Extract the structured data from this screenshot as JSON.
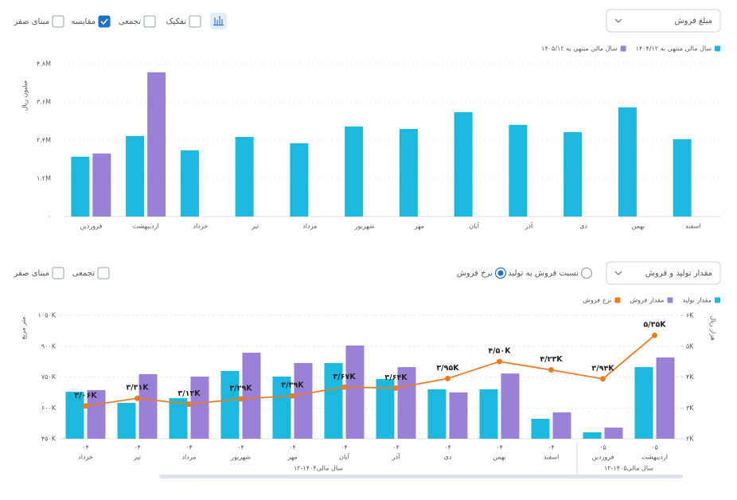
{
  "top_controls": {
    "dropdown": "مبلغ فروش",
    "checkboxes": [
      {
        "label": "مبنای صفر",
        "checked": false
      },
      {
        "label": "مقایسه",
        "checked": true
      },
      {
        "label": "تجمعی",
        "checked": false
      },
      {
        "label": "تفکیک",
        "checked": false
      }
    ]
  },
  "bottom_controls": {
    "dropdown": "مقدار تولید و فروش",
    "checkboxes": [
      {
        "label": "مبنای صفر",
        "checked": false
      },
      {
        "label": "تجمعی",
        "checked": false
      }
    ],
    "radios": [
      {
        "label": "نرخ فروش",
        "checked": true
      },
      {
        "label": "نسبت فروش به تولید",
        "checked": false
      }
    ]
  },
  "chart_data": [
    {
      "type": "bar",
      "y_label": "میلیون ریال",
      "categories": [
        "فروردین",
        "اردیبهشت",
        "خرداد",
        "تیر",
        "مرداد",
        "شهریور",
        "مهر",
        "آبان",
        "آذر",
        "دی",
        "بهمن",
        "اسفند"
      ],
      "series": [
        {
          "name": "سال مالی منتهی به ۱۴۰۴/۱۲",
          "color": "#1cb8de",
          "values": [
            1880000,
            2530000,
            2080000,
            2500000,
            2300000,
            2830000,
            2750000,
            3280000,
            2880000,
            2650000,
            3430000,
            2430000
          ]
        },
        {
          "name": "سال مالی منتهی به ۱۴۰۵/۱۲",
          "color": "#9b80d8",
          "values": [
            1980000,
            4530000,
            null,
            null,
            null,
            null,
            null,
            null,
            null,
            null,
            null,
            null
          ]
        }
      ],
      "ylim": [
        0,
        4800000
      ],
      "yticks": [
        {
          "value": 0,
          "label": "۰"
        },
        {
          "value": 1200000,
          "label": "۱.۲M"
        },
        {
          "value": 2400000,
          "label": "۲.۴M"
        },
        {
          "value": 3600000,
          "label": "۳.۶M"
        },
        {
          "value": 4800000,
          "label": "۴.۸M"
        }
      ],
      "grid": true
    },
    {
      "type": "combo",
      "y_label": "متر مربع",
      "y2_label": "هزار ریال",
      "categories": [
        "خرداد",
        "تیر",
        "مرداد",
        "شهریور",
        "مهر",
        "آبان",
        "آذر",
        "دی",
        "بهمن",
        "اسفند",
        "فروردین",
        "اردیبهشت"
      ],
      "category_years": [
        "۰۴",
        "۰۴",
        "۰۴",
        "۰۴",
        "۰۴",
        "۰۴",
        "۰۴",
        "۰۴",
        "۰۴",
        "۰۴",
        "۰۵",
        "۰۵"
      ],
      "groups": [
        "سال مالی۱۴۰۴-۱۲",
        "سال مالی۱۴۰۵-۱۲"
      ],
      "series": [
        {
          "name": "مقدار تولید",
          "type": "bar",
          "color": "#1cb8de",
          "values": [
            678000,
            624000,
            647000,
            779000,
            752000,
            818000,
            740000,
            690000,
            690000,
            547000,
            481000,
            798000
          ]
        },
        {
          "name": "مقدار فروش",
          "type": "bar",
          "color": "#9b80d8",
          "values": [
            686000,
            764000,
            752000,
            868000,
            818000,
            903000,
            798000,
            675000,
            767000,
            578000,
            504000,
            845000
          ]
        },
        {
          "name": "نرخ فروش",
          "type": "line",
          "axis": "y2",
          "color": "#ec7c23",
          "values": [
            3060,
            3310,
            3120,
            3290,
            3390,
            3670,
            3640,
            3950,
            4500,
            4230,
            3940,
            5350
          ],
          "value_labels": [
            "۳/۰۶K",
            "۳/۳۱K",
            "۳/۱۲K",
            "۳/۲۹K",
            "۳/۳۹K",
            "۳/۶۷K",
            "۳/۶۴K",
            "۳/۹۵K",
            "۴/۵۰K",
            "۴/۲۳K",
            "۳/۹۴K",
            "۵/۳۵K"
          ]
        }
      ],
      "ylim": [
        450000,
        1050000
      ],
      "yticks": [
        {
          "value": 450000,
          "label": "۴۵۰K"
        },
        {
          "value": 600000,
          "label": "۶۰۰K"
        },
        {
          "value": 750000,
          "label": "۷۵۰K"
        },
        {
          "value": 900000,
          "label": "۹۰۰K"
        },
        {
          "value": 1050000,
          "label": "۱۰۵۰K"
        }
      ],
      "y2lim": [
        2000,
        6000
      ],
      "y2ticks": [
        {
          "value": 2000,
          "label": "۲K"
        },
        {
          "value": 3000,
          "label": "۳K"
        },
        {
          "value": 4000,
          "label": "۴K"
        },
        {
          "value": 5000,
          "label": "۵K"
        },
        {
          "value": 6000,
          "label": "۶K"
        }
      ],
      "grid": true
    }
  ]
}
